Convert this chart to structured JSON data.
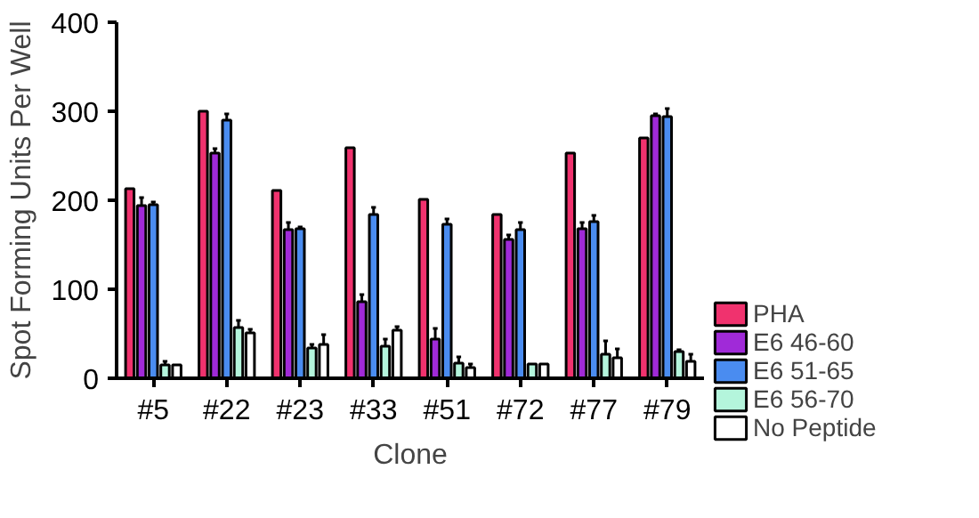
{
  "chart_data": {
    "type": "bar",
    "xlabel": "Clone",
    "ylabel": "Spot Forming Units Per Well",
    "categories": [
      "#5",
      "#22",
      "#23",
      "#33",
      "#51",
      "#72",
      "#77",
      "#79"
    ],
    "series": [
      {
        "name": "PHA",
        "color": "#f0326e",
        "values": [
          213,
          300,
          211,
          259,
          201,
          184,
          253,
          270
        ]
      },
      {
        "name": "E6 46-60",
        "color": "#a02ad8",
        "values": [
          194,
          253,
          167,
          86,
          44,
          156,
          168,
          295
        ],
        "errors": [
          9,
          5,
          8,
          8,
          12,
          5,
          7,
          2
        ]
      },
      {
        "name": "E6 51-65",
        "color": "#4a8cf0",
        "values": [
          195,
          290,
          168,
          184,
          173,
          167,
          176,
          294
        ],
        "errors": [
          3,
          7,
          2,
          8,
          6,
          8,
          7,
          9
        ]
      },
      {
        "name": "E6 56-70",
        "color": "#b4f5dc",
        "values": [
          15,
          57,
          34,
          36,
          17,
          16,
          27,
          30
        ],
        "errors": [
          4,
          8,
          4,
          8,
          7,
          null,
          15,
          2
        ]
      },
      {
        "name": "No Peptide",
        "color": "#ffffff",
        "values": [
          15,
          51,
          38,
          54,
          12,
          16,
          23,
          19
        ],
        "errors": [
          null,
          4,
          11,
          4,
          4,
          null,
          10,
          8
        ]
      }
    ],
    "ylim": [
      0,
      400
    ],
    "yticks": [
      0,
      100,
      200,
      300,
      400
    ],
    "grid": false,
    "legend": "right"
  }
}
